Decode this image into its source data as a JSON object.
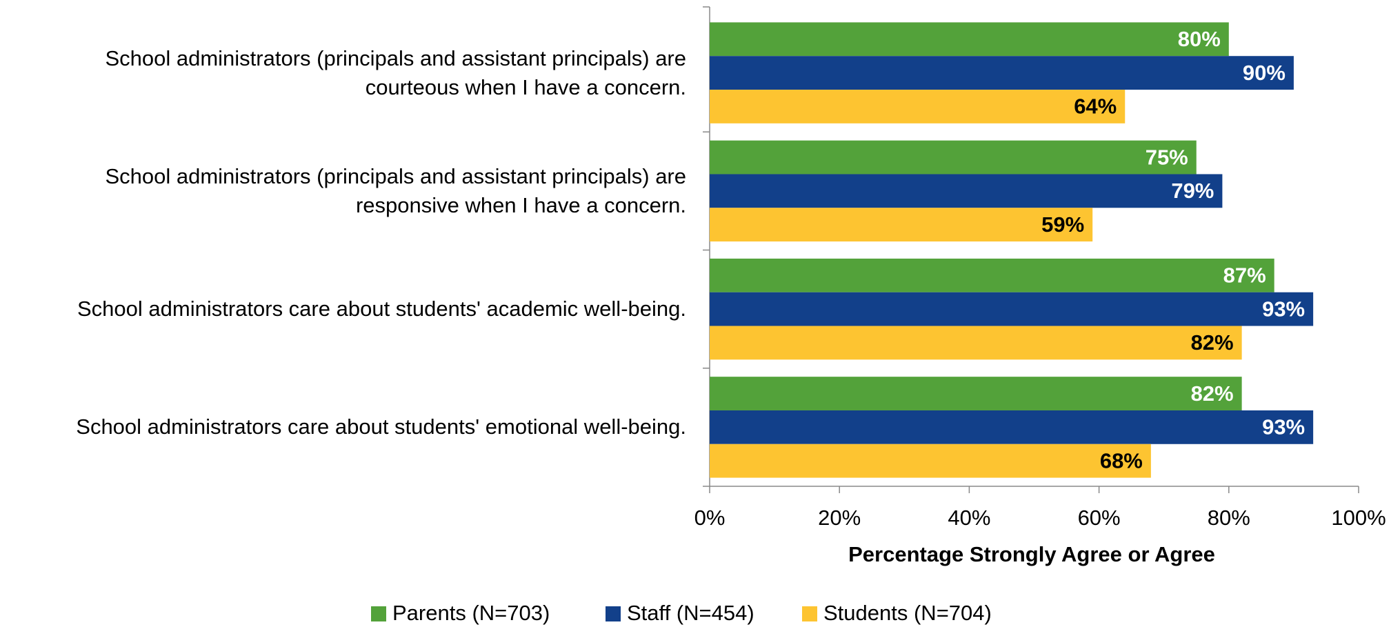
{
  "chart_data": {
    "type": "hbar",
    "categories": [
      "School administrators (principals and assistant principals) are courteous when I have a concern.",
      "School administrators (principals and assistant principals) are responsive when I have a concern.",
      "School administrators care about students' academic well-being.",
      "School administrators care about students' emotional well-being."
    ],
    "series": [
      {
        "name": "Parents (N=703)",
        "color": "#53a23a",
        "label_color": "#ffffff",
        "values": [
          80,
          75,
          87,
          82
        ],
        "value_labels": [
          "80%",
          "75%",
          "87%",
          "82%"
        ]
      },
      {
        "name": "Staff (N=454)",
        "color": "#12408a",
        "label_color": "#ffffff",
        "values": [
          90,
          79,
          93,
          93
        ],
        "value_labels": [
          "90%",
          "79%",
          "93%",
          "93%"
        ]
      },
      {
        "name": "Students (N=704)",
        "color": "#fdc431",
        "label_color": "#000000",
        "values": [
          64,
          59,
          82,
          68
        ],
        "value_labels": [
          "64%",
          "59%",
          "82%",
          "68%"
        ]
      }
    ],
    "xlabel": "Percentage Strongly Agree or Agree",
    "xlim": [
      0,
      100
    ],
    "xticks": [
      {
        "value": 0,
        "label": "0%"
      },
      {
        "value": 20,
        "label": "20%"
      },
      {
        "value": 40,
        "label": "40%"
      },
      {
        "value": 60,
        "label": "60%"
      },
      {
        "value": 80,
        "label": "80%"
      },
      {
        "value": 100,
        "label": "100%"
      }
    ],
    "legend": "bottom"
  }
}
